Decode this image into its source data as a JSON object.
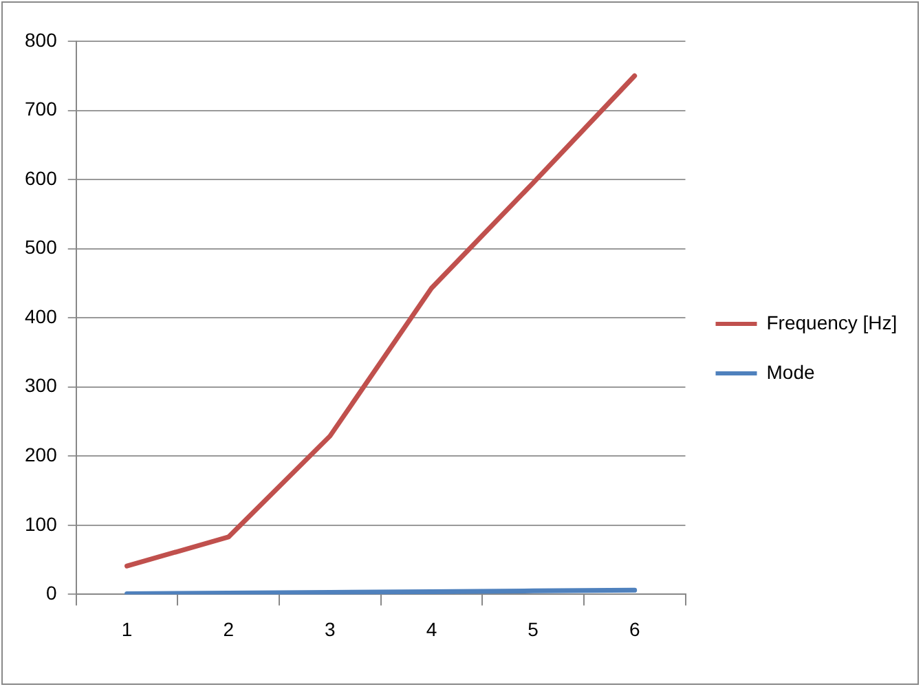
{
  "chart_data": {
    "type": "line",
    "categories": [
      "1",
      "2",
      "3",
      "4",
      "5",
      "6"
    ],
    "series": [
      {
        "name": "Frequency [Hz]",
        "color": "#c0504d",
        "values": [
          41,
          83,
          229,
          443,
          595,
          750
        ]
      },
      {
        "name": "Mode",
        "color": "#4f81bd",
        "values": [
          1,
          2,
          3,
          4,
          5,
          6
        ]
      }
    ],
    "ylim": [
      0,
      800
    ],
    "yticks": [
      0,
      100,
      200,
      300,
      400,
      500,
      600,
      700,
      800
    ],
    "grid": "y",
    "legend": "right",
    "marker": "none",
    "line_style": "solid"
  }
}
